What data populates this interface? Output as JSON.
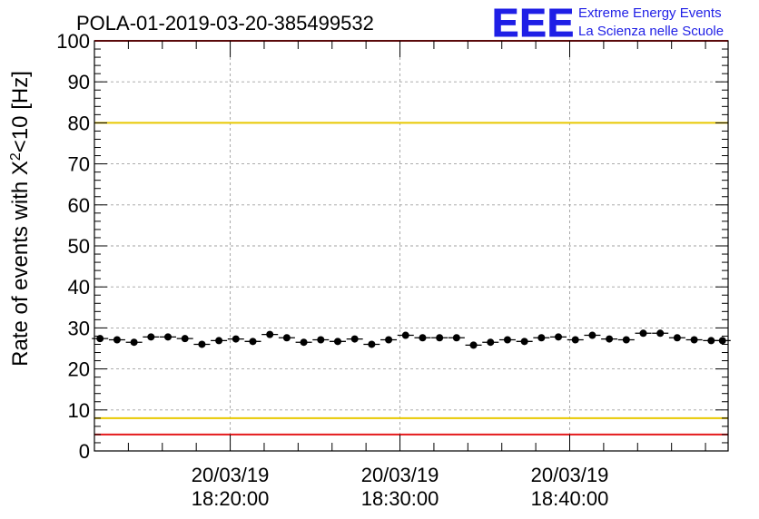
{
  "chart_data": {
    "type": "scatter",
    "title": "POLA-01-2019-03-20-385499532",
    "ylabel": "Rate of events with X²<10 [Hz]",
    "ylabel_parts": {
      "pre": "Rate of events with X",
      "sup": "2",
      "post": "<10 [Hz]"
    },
    "ylim": [
      0,
      100
    ],
    "y_ticks": [
      "0",
      "10",
      "20",
      "30",
      "40",
      "50",
      "60",
      "70",
      "80",
      "90",
      "100"
    ],
    "x_start": "2019-03-20 18:12:00",
    "x_end": "2019-03-20 18:49:20",
    "x_ticks": [
      {
        "date": "20/03/19",
        "time": "18:20:00"
      },
      {
        "date": "20/03/19",
        "time": "18:30:00"
      },
      {
        "date": "20/03/19",
        "time": "18:40:00"
      }
    ],
    "grid": true,
    "reference_lines": [
      {
        "y": 100,
        "color": "#e41a1c"
      },
      {
        "y": 80,
        "color": "#e8c800"
      },
      {
        "y": 8,
        "color": "#e8c800"
      },
      {
        "y": 4,
        "color": "#e41a1c"
      }
    ],
    "series": [
      {
        "color": "#000000",
        "x": [
          "18:12:20",
          "18:13:20",
          "18:14:20",
          "18:15:20",
          "18:16:20",
          "18:17:20",
          "18:18:20",
          "18:19:20",
          "18:20:20",
          "18:21:20",
          "18:22:20",
          "18:23:20",
          "18:24:20",
          "18:25:20",
          "18:26:20",
          "18:27:20",
          "18:28:20",
          "18:29:20",
          "18:30:20",
          "18:31:20",
          "18:32:20",
          "18:33:20",
          "18:34:20",
          "18:35:20",
          "18:36:20",
          "18:37:20",
          "18:38:20",
          "18:39:20",
          "18:40:20",
          "18:41:20",
          "18:42:20",
          "18:43:20",
          "18:44:20",
          "18:45:20",
          "18:46:20",
          "18:47:20",
          "18:48:20",
          "18:49:00"
        ],
        "values": [
          27.4,
          27.1,
          26.5,
          27.8,
          27.8,
          27.4,
          26.0,
          26.9,
          27.3,
          26.7,
          28.4,
          27.6,
          26.5,
          27.1,
          26.7,
          27.3,
          26.0,
          27.1,
          28.2,
          27.6,
          27.6,
          27.6,
          25.8,
          26.5,
          27.1,
          26.7,
          27.6,
          27.8,
          27.1,
          28.2,
          27.3,
          27.1,
          28.7,
          28.7,
          27.6,
          27.1,
          26.9,
          26.9
        ]
      }
    ]
  },
  "logo": {
    "mark": "EEE",
    "line1": "Extreme Energy Events",
    "line2": "La Scienza nelle Scuole",
    "color": "#1f1fe6"
  }
}
